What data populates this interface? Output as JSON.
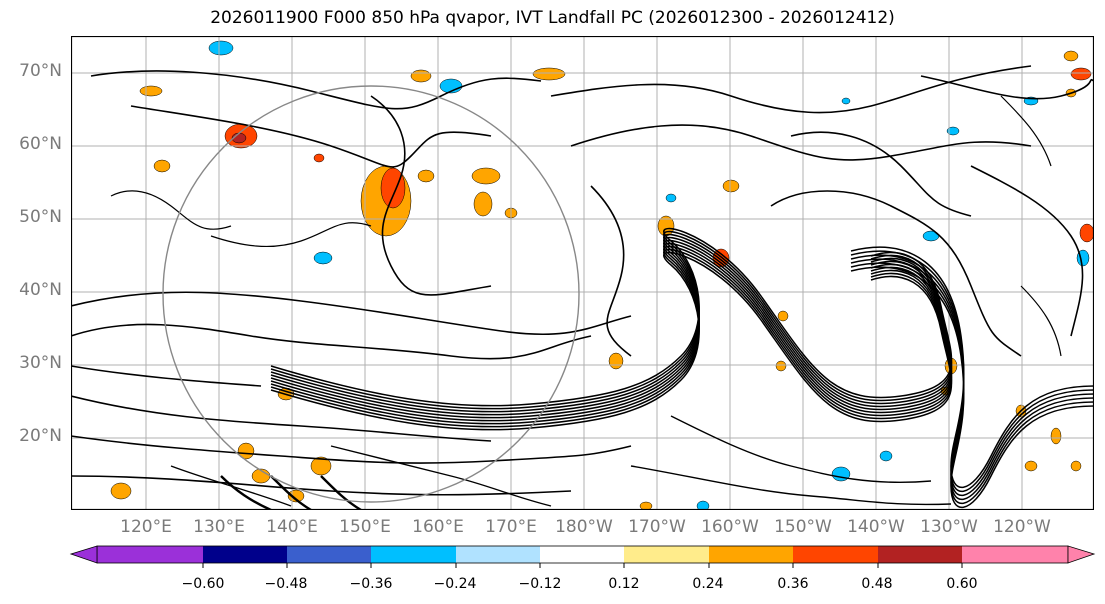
{
  "title": "2026011900 F000 850 hPa qvapor, IVT Landfall PC (2026012300 - 2026012412)",
  "lat_labels": [
    "70°N",
    "60°N",
    "50°N",
    "40°N",
    "30°N",
    "20°N"
  ],
  "lon_labels": [
    "120°E",
    "130°E",
    "140°E",
    "150°E",
    "160°E",
    "170°E",
    "180°W",
    "170°W",
    "160°W",
    "150°W",
    "140°W",
    "130°W",
    "120°W"
  ],
  "colorbar": {
    "colors": [
      "#9b30d9",
      "#00008b",
      "#3a5fcd",
      "#00bfff",
      "#b0e2ff",
      "#ffffff",
      "#ffec8b",
      "#ffa500",
      "#ff4500",
      "#b22222",
      "#ff82ab"
    ],
    "ticks": [
      "−0.60",
      "−0.48",
      "−0.36",
      "−0.24",
      "−0.12",
      "0.12",
      "0.24",
      "0.36",
      "0.48",
      "0.60"
    ]
  },
  "colors": {
    "grid": "#b0b0b0",
    "contour": "#000000",
    "label": "#7a7a7a"
  }
}
